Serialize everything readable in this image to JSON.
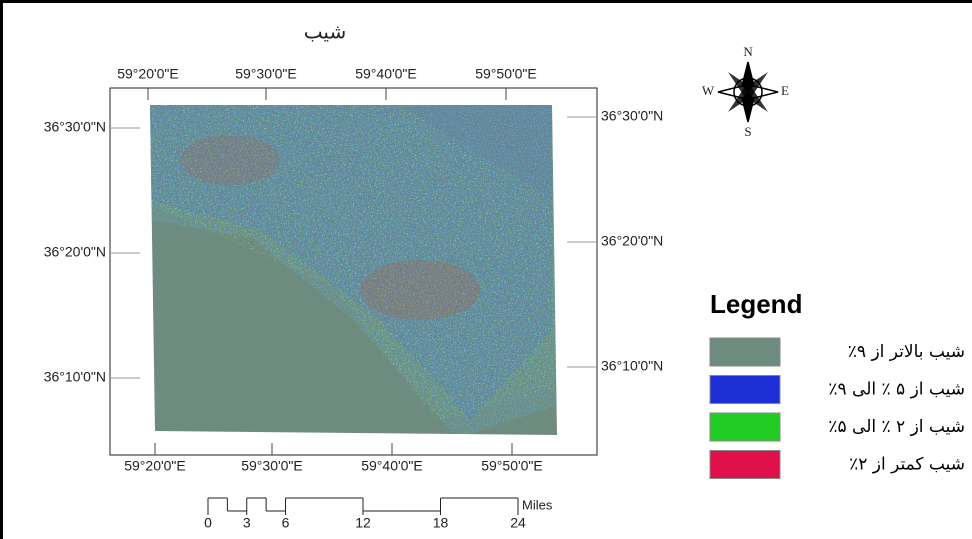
{
  "title": "شیب",
  "grid_labels": {
    "top": [
      "59°20'0\"E",
      "59°30'0\"E",
      "59°40'0\"E",
      "59°50'0\"E"
    ],
    "bottom": [
      "59°20'0\"E",
      "59°30'0\"E",
      "59°40'0\"E",
      "59°50'0\"E"
    ],
    "left": [
      "36°30'0\"N",
      "36°20'0\"N",
      "36°10'0\"N"
    ],
    "right": [
      "36°30'0\"N",
      "36°20'0\"N",
      "36°10'0\"N"
    ]
  },
  "compass": {
    "n": "N",
    "s": "S",
    "e": "E",
    "w": "W"
  },
  "legend": {
    "title": "Legend",
    "items": [
      {
        "label": "شیب بالاتر از ۹٪",
        "color": "#6d8b7e"
      },
      {
        "label": "شیب از ۵ ٪ الی ۹٪",
        "color": "#1f2fd6"
      },
      {
        "label": "شیب از ۲ ٪ الی ۵٪",
        "color": "#22cc22"
      },
      {
        "label": "شیب کمتر از ۲٪",
        "color": "#e0104a"
      }
    ]
  },
  "scale": {
    "ticks": [
      0,
      3,
      6,
      12,
      18,
      24
    ],
    "unit": "Miles"
  }
}
